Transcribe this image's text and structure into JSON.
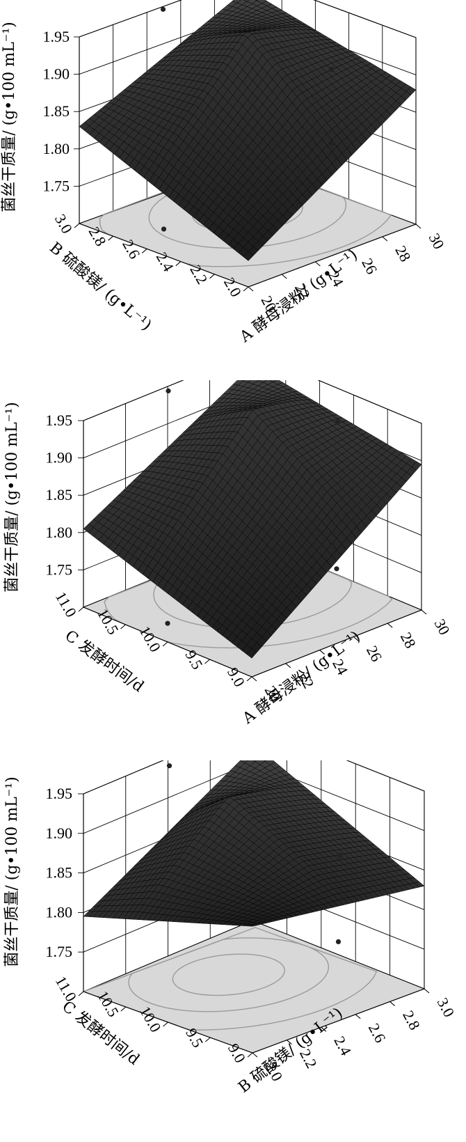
{
  "chart_data": [
    {
      "type": "surface",
      "zlabel": "菌丝干质量/ (g•100 mL⁻¹)",
      "z_ticks": [
        "1.75",
        "1.80",
        "1.85",
        "1.90",
        "1.95"
      ],
      "zlim": [
        1.7,
        1.95
      ],
      "x_axis": {
        "label": "A 酵母浸粉/ (g•L⁻¹)",
        "ticks": [
          "20",
          "22",
          "24",
          "26",
          "28",
          "30"
        ],
        "range": [
          20,
          30
        ]
      },
      "y_axis": {
        "label": "B 硫酸镁/ (g•L⁻¹)",
        "ticks": [
          "2.0",
          "2.2",
          "2.4",
          "2.6",
          "2.8",
          "3.0"
        ],
        "range": [
          2.0,
          3.0
        ]
      },
      "corner_values": {
        "front": 1.735,
        "left": 1.83,
        "right": 1.88,
        "back": 1.93
      },
      "peak": {
        "x": 26.0,
        "y": 2.6,
        "z": 1.94
      },
      "design_points": [
        {
          "x": 25,
          "y": 2.0,
          "z": 1.85
        },
        {
          "x": 30,
          "y": 2.5,
          "z": 1.865
        },
        {
          "x": 25,
          "y": 3.0,
          "z": 1.945
        },
        {
          "x": 20,
          "y": 2.5,
          "z": 1.735
        }
      ]
    },
    {
      "type": "surface",
      "zlabel": "菌丝干质量/ (g•100 mL⁻¹)",
      "z_ticks": [
        "1.75",
        "1.80",
        "1.85",
        "1.90",
        "1.95"
      ],
      "zlim": [
        1.7,
        1.95
      ],
      "x_axis": {
        "label": "A 酵母浸粉/ (g•L⁻¹)",
        "ticks": [
          "20",
          "22",
          "24",
          "26",
          "28",
          "30"
        ],
        "range": [
          20,
          30
        ]
      },
      "y_axis": {
        "label": "C 发酵时间/d",
        "ticks": [
          "9.0",
          "9.5",
          "10.0",
          "10.5",
          "11.0"
        ],
        "range": [
          9.0,
          11.0
        ]
      },
      "corner_values": {
        "front": 1.725,
        "left": 1.805,
        "right": 1.895,
        "back": 1.935
      },
      "peak": {
        "x": 26.5,
        "y": 10.3,
        "z": 1.94
      },
      "design_points": [
        {
          "x": 25,
          "y": 9.0,
          "z": 1.8
        },
        {
          "x": 30,
          "y": 10.0,
          "z": 1.905
        },
        {
          "x": 25,
          "y": 11.0,
          "z": 1.945
        },
        {
          "x": 20,
          "y": 10.0,
          "z": 1.725
        }
      ]
    },
    {
      "type": "surface",
      "zlabel": "菌丝干质量/ (g•100 mL⁻¹)",
      "z_ticks": [
        "1.75",
        "1.80",
        "1.85",
        "1.90",
        "1.95"
      ],
      "zlim": [
        1.7,
        1.95
      ],
      "x_axis": {
        "label": "B 硫酸镁/ (g•L⁻¹)",
        "ticks": [
          "2.0",
          "2.2",
          "2.4",
          "2.6",
          "2.8",
          "3.0"
        ],
        "range": [
          2.0,
          3.0
        ]
      },
      "y_axis": {
        "label": "C 发酵时间/d",
        "ticks": [
          "9.0",
          "9.5",
          "10.0",
          "10.5",
          "11.0"
        ],
        "range": [
          9.0,
          11.0
        ]
      },
      "corner_values": {
        "front": 1.86,
        "left": 1.795,
        "right": 1.83,
        "back": 1.93
      },
      "peak": {
        "x": 2.55,
        "y": 10.4,
        "z": 1.925
      },
      "design_points": [
        {
          "x": 2.5,
          "y": 9.0,
          "z": 1.8
        },
        {
          "x": 3.0,
          "y": 10.0,
          "z": 1.83
        },
        {
          "x": 2.5,
          "y": 11.0,
          "z": 1.945
        },
        {
          "x": 2.0,
          "y": 10.0,
          "z": 1.86
        }
      ]
    }
  ]
}
